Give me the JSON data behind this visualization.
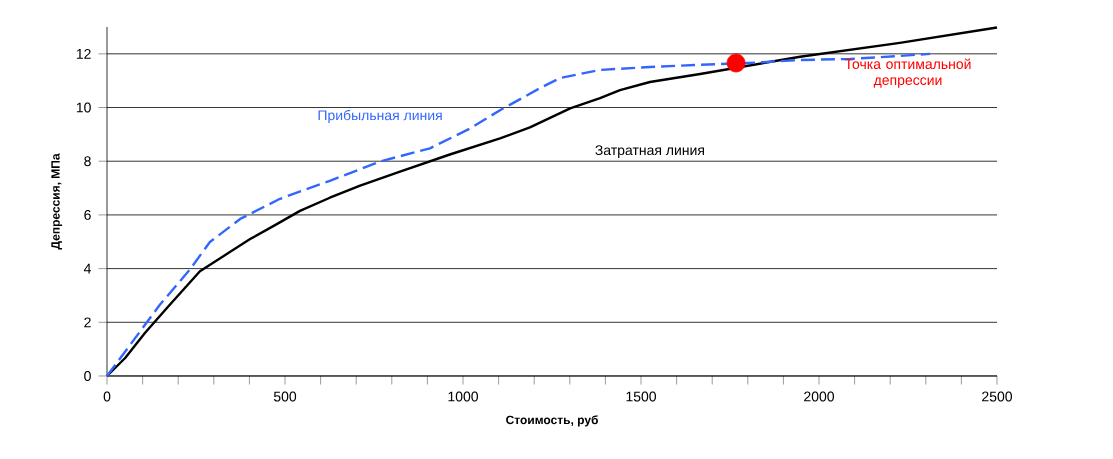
{
  "chart_data": {
    "type": "line",
    "xlabel": "Стоимость, руб",
    "ylabel": "Депрессия, МПа",
    "xlim": [
      0,
      2500
    ],
    "ylim": [
      0,
      13
    ],
    "xticks": [
      0,
      {
        "value": 100,
        "label": null
      },
      {
        "value": 200,
        "label": null
      },
      {
        "value": 300,
        "label": null
      },
      {
        "value": 400,
        "label": null
      },
      500,
      {
        "value": 600,
        "label": null
      },
      {
        "value": 700,
        "label": null
      },
      {
        "value": 800,
        "label": null
      },
      {
        "value": 900,
        "label": null
      },
      1000,
      {
        "value": 1100,
        "label": null
      },
      {
        "value": 1200,
        "label": null
      },
      {
        "value": 1300,
        "label": null
      },
      {
        "value": 1400,
        "label": null
      },
      1500,
      {
        "value": 1600,
        "label": null
      },
      {
        "value": 1700,
        "label": null
      },
      {
        "value": 1800,
        "label": null
      },
      {
        "value": 1900,
        "label": null
      },
      2000,
      {
        "value": 2100,
        "label": null
      },
      {
        "value": 2200,
        "label": null
      },
      {
        "value": 2300,
        "label": null
      },
      {
        "value": 2400,
        "label": null
      },
      2500
    ],
    "yticks": [
      0,
      2,
      4,
      6,
      8,
      10,
      12
    ],
    "grid": "y",
    "marker": "none",
    "annotations": [
      "Точка оптимальной депрессии"
    ],
    "series": [
      {
        "name": "Затратная линия",
        "color": "#000000",
        "line_style": "solid",
        "x": [
          0,
          51,
          107,
          177,
          261,
          331,
          402,
          472,
          542,
          626,
          711,
          823,
          963,
          1104,
          1188,
          1301,
          1385,
          1441,
          1525,
          1666,
          1778,
          1947,
          2227,
          2500
        ],
        "values": [
          0,
          0.67,
          1.61,
          2.66,
          3.9,
          4.5,
          5.1,
          5.62,
          6.15,
          6.64,
          7.09,
          7.61,
          8.25,
          8.85,
          9.26,
          9.97,
          10.35,
          10.65,
          10.95,
          11.25,
          null,
          11.89,
          12.41,
          12.98
        ]
      },
      {
        "name": "Прибыльная линия",
        "color": "#3366ff",
        "line_style": "dashed",
        "x": [
          0,
          65,
          149,
          233,
          289,
          374,
          486,
          626,
          767,
          907,
          1020,
          1104,
          1216,
          1273,
          1385,
          1525,
          1666,
          1806,
          1947,
          2087,
          2227,
          2312
        ],
        "values": [
          0,
          1.16,
          2.66,
          3.97,
          4.99,
          5.85,
          6.6,
          7.27,
          7.99,
          8.48,
          9.22,
          9.9,
          10.72,
          11.1,
          11.4,
          11.51,
          11.59,
          11.66,
          11.77,
          11.81,
          11.92,
          12.0
        ]
      },
      {
        "type": "scatter",
        "color": "#ff0000",
        "marker": "circle",
        "x": [
          1767
        ],
        "values": [
          11.66
        ]
      }
    ]
  }
}
